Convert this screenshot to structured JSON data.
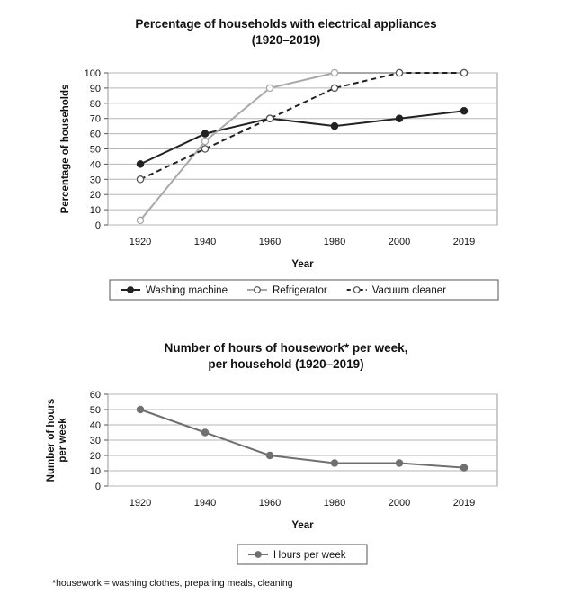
{
  "chart_data": [
    {
      "type": "line",
      "title": "Percentage of households with electrical appliances",
      "subtitle": "(1920–2019)",
      "xlabel": "Year",
      "ylabel": "Percentage of households",
      "categories": [
        "1920",
        "1940",
        "1960",
        "1980",
        "2000",
        "2019"
      ],
      "ylim": [
        0,
        100
      ],
      "yticks": [
        "0",
        "10",
        "20",
        "30",
        "40",
        "50",
        "60",
        "70",
        "80",
        "90",
        "100"
      ],
      "grid": true,
      "legend_position": "bottom",
      "series": [
        {
          "name": "Washing machine",
          "values": [
            40,
            60,
            70,
            65,
            70,
            75
          ],
          "color": "#222222",
          "style": "solid",
          "marker": "filled"
        },
        {
          "name": "Refrigerator",
          "values": [
            3,
            55,
            90,
            100,
            100,
            100
          ],
          "color": "#a8a8a8",
          "style": "solid",
          "marker": "hollow"
        },
        {
          "name": "Vacuum cleaner",
          "values": [
            30,
            50,
            70,
            90,
            100,
            100
          ],
          "color": "#222222",
          "style": "dashed",
          "marker": "hollow"
        }
      ]
    },
    {
      "type": "line",
      "title": "Number of hours of housework* per week,",
      "subtitle": "per household (1920–2019)",
      "xlabel": "Year",
      "ylabel": "Number of hours per week",
      "ylabel_lines": [
        "Number of hours",
        "per week"
      ],
      "categories": [
        "1920",
        "1940",
        "1960",
        "1980",
        "2000",
        "2019"
      ],
      "ylim": [
        0,
        60
      ],
      "yticks": [
        "0",
        "10",
        "20",
        "30",
        "40",
        "50",
        "60"
      ],
      "grid": true,
      "legend_position": "bottom",
      "series": [
        {
          "name": "Hours per week",
          "values": [
            50,
            35,
            20,
            15,
            15,
            12
          ],
          "color": "#707070",
          "style": "solid",
          "marker": "filled"
        }
      ]
    }
  ],
  "footnote": "*housework = washing clothes, preparing meals, cleaning"
}
